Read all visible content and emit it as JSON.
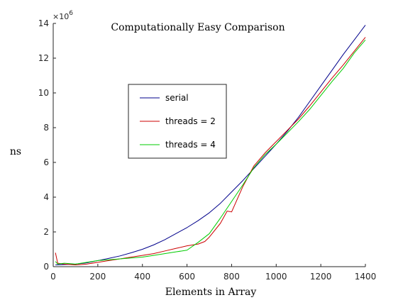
{
  "chart_data": {
    "type": "line",
    "title": "Computationally Easy Comparison",
    "xlabel": "Elements in Array",
    "ylabel": "ns",
    "y_multiplier": "×10",
    "y_exponent": "6",
    "xlim": [
      0,
      1400
    ],
    "ylim": [
      0,
      14
    ],
    "xticks": [
      0,
      200,
      400,
      600,
      800,
      1000,
      1200,
      1400
    ],
    "yticks": [
      0,
      2,
      4,
      6,
      8,
      10,
      12,
      14
    ],
    "grid": false,
    "legend_position": "upper-left-center",
    "series": [
      {
        "name": "serial",
        "color": "#00008b",
        "x": [
          10,
          50,
          100,
          150,
          200,
          250,
          300,
          350,
          400,
          450,
          500,
          550,
          600,
          650,
          700,
          750,
          800,
          850,
          900,
          950,
          1000,
          1050,
          1100,
          1150,
          1200,
          1250,
          1300,
          1350,
          1400
        ],
        "y": [
          0.1,
          0.12,
          0.15,
          0.22,
          0.35,
          0.48,
          0.62,
          0.8,
          1.0,
          1.25,
          1.55,
          1.9,
          2.25,
          2.65,
          3.1,
          3.65,
          4.3,
          4.95,
          5.65,
          6.35,
          7.05,
          7.8,
          8.6,
          9.5,
          10.4,
          11.3,
          12.2,
          13.05,
          13.9
        ]
      },
      {
        "name": "threads = 2",
        "color": "#cc0000",
        "x": [
          10,
          20,
          50,
          100,
          150,
          200,
          250,
          300,
          350,
          400,
          450,
          500,
          550,
          600,
          650,
          680,
          700,
          750,
          780,
          800,
          850,
          900,
          950,
          1000,
          1050,
          1100,
          1150,
          1200,
          1250,
          1300,
          1350,
          1400
        ],
        "y": [
          0.8,
          0.2,
          0.15,
          0.1,
          0.15,
          0.25,
          0.35,
          0.45,
          0.55,
          0.65,
          0.75,
          0.9,
          1.05,
          1.2,
          1.3,
          1.45,
          1.7,
          2.5,
          3.2,
          3.15,
          4.6,
          5.8,
          6.55,
          7.2,
          7.85,
          8.5,
          9.25,
          10.05,
          10.85,
          11.6,
          12.4,
          13.2
        ]
      },
      {
        "name": "threads = 4",
        "color": "#00cc00",
        "x": [
          10,
          20,
          50,
          100,
          150,
          200,
          250,
          300,
          350,
          400,
          450,
          500,
          550,
          600,
          650,
          700,
          750,
          800,
          850,
          900,
          950,
          1000,
          1050,
          1100,
          1150,
          1200,
          1250,
          1300,
          1350,
          1400
        ],
        "y": [
          0.3,
          0.15,
          0.2,
          0.15,
          0.25,
          0.35,
          0.4,
          0.45,
          0.5,
          0.55,
          0.65,
          0.75,
          0.85,
          0.95,
          1.4,
          1.9,
          2.8,
          3.75,
          4.7,
          5.7,
          6.45,
          7.05,
          7.7,
          8.35,
          9.05,
          9.85,
          10.65,
          11.4,
          12.3,
          13.05
        ]
      }
    ]
  }
}
